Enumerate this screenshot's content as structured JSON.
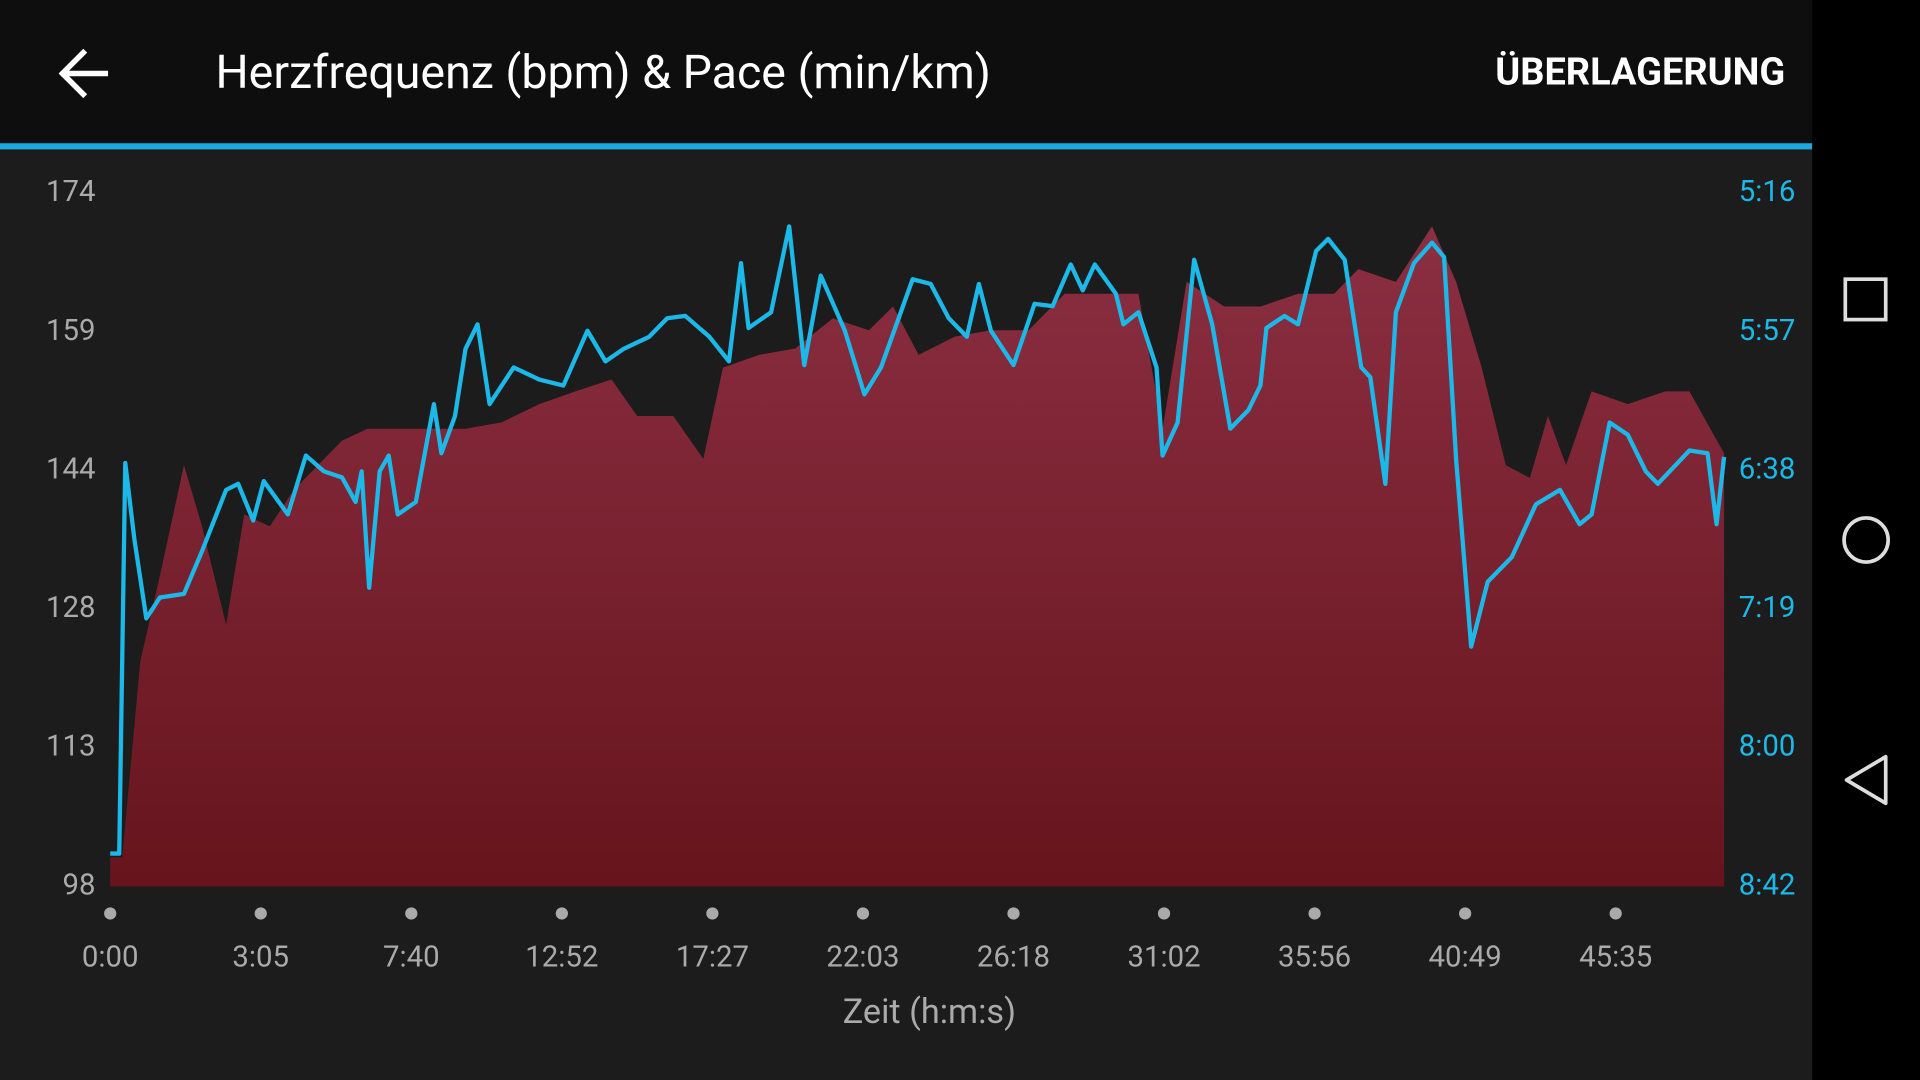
{
  "header": {
    "title": "Herzfrequenz (bpm) & Pace (min/km)",
    "action": "ÜBERLAGERUNG"
  },
  "chart_data": {
    "type": "line",
    "xlabel": "Zeit (h:m:s)",
    "xlim": [
      0,
      10.72
    ],
    "xticks": [
      {
        "value": 0,
        "label": "0:00"
      },
      {
        "value": 1,
        "label": "3:05"
      },
      {
        "value": 2,
        "label": "7:40"
      },
      {
        "value": 3,
        "label": "12:52"
      },
      {
        "value": 4,
        "label": "17:27"
      },
      {
        "value": 5,
        "label": "22:03"
      },
      {
        "value": 6,
        "label": "26:18"
      },
      {
        "value": 7,
        "label": "31:02"
      },
      {
        "value": 8,
        "label": "35:56"
      },
      {
        "value": 9,
        "label": "40:49"
      },
      {
        "value": 10,
        "label": "45:35"
      }
    ],
    "ylim": [
      98,
      174
    ],
    "yticks": [
      98,
      {
        "value": 113.2,
        "label": "113"
      },
      {
        "value": 128.4,
        "label": "128"
      },
      {
        "value": 143.6,
        "label": "144"
      },
      {
        "value": 158.8,
        "label": "159"
      },
      174
    ],
    "y2lim": [
      522,
      316
    ],
    "y2ticks": [
      {
        "value": 522,
        "label": "8:42"
      },
      {
        "value": 480.8,
        "label": "8:00"
      },
      {
        "value": 439.6,
        "label": "7:19"
      },
      {
        "value": 398.4,
        "label": "6:38"
      },
      {
        "value": 357.2,
        "label": "5:57"
      },
      {
        "value": 316,
        "label": "5:16"
      }
    ],
    "series": [
      {
        "type": "area",
        "color": "#8a2d3f",
        "x": [
          0,
          0.08,
          0.2,
          0.33,
          0.49,
          0.61,
          0.77,
          0.89,
          1.06,
          1.22,
          1.38,
          1.54,
          1.71,
          1.87,
          2.11,
          2.36,
          2.6,
          2.85,
          3.09,
          3.33,
          3.5,
          3.74,
          3.94,
          4.07,
          4.31,
          4.55,
          4.8,
          5.04,
          5.2,
          5.37,
          5.61,
          5.85,
          6.1,
          6.34,
          6.59,
          6.83,
          6.99,
          7.15,
          7.4,
          7.64,
          7.89,
          8.13,
          8.29,
          8.54,
          8.78,
          8.94,
          9.11,
          9.27,
          9.43,
          9.55,
          9.67,
          9.84,
          10.08,
          10.33,
          10.49,
          10.72
        ],
        "values": [
          101.2,
          101.2,
          122.7,
          132.1,
          144.2,
          137.5,
          126.7,
          138.8,
          137.5,
          141.5,
          144.2,
          146.9,
          148.2,
          148.2,
          148.2,
          148.2,
          148.9,
          150.9,
          152.3,
          153.6,
          149.6,
          149.6,
          144.9,
          154.9,
          156.3,
          157.0,
          160.3,
          159.0,
          161.6,
          156.3,
          158.3,
          159.0,
          159.0,
          163.0,
          163.0,
          163.0,
          148.2,
          164.3,
          161.6,
          161.6,
          163.0,
          163.0,
          165.7,
          164.3,
          170.4,
          164.3,
          154.9,
          144.2,
          142.8,
          149.6,
          144.2,
          152.3,
          150.9,
          152.3,
          152.3,
          145.5
        ]
      },
      {
        "type": "line",
        "axis": "y2",
        "color": "#1cb8e8",
        "x": [
          0,
          0.06,
          0.1,
          0.16,
          0.24,
          0.33,
          0.49,
          0.61,
          0.77,
          0.85,
          0.95,
          1.02,
          1.18,
          1.3,
          1.42,
          1.54,
          1.63,
          1.67,
          1.72,
          1.79,
          1.85,
          1.91,
          2.03,
          2.15,
          2.2,
          2.29,
          2.36,
          2.44,
          2.52,
          2.68,
          2.85,
          3.01,
          3.17,
          3.29,
          3.41,
          3.58,
          3.7,
          3.82,
          3.98,
          4.11,
          4.19,
          4.24,
          4.39,
          4.51,
          4.61,
          4.72,
          4.88,
          5.01,
          5.12,
          5.33,
          5.45,
          5.57,
          5.69,
          5.77,
          5.85,
          6.0,
          6.14,
          6.26,
          6.38,
          6.46,
          6.54,
          6.68,
          6.73,
          6.83,
          6.95,
          6.99,
          7.09,
          7.2,
          7.32,
          7.44,
          7.56,
          7.64,
          7.68,
          7.8,
          7.89,
          8.01,
          8.09,
          8.2,
          8.31,
          8.37,
          8.47,
          8.54,
          8.66,
          8.78,
          8.86,
          8.94,
          9.04,
          9.15,
          9.31,
          9.47,
          9.63,
          9.76,
          9.84,
          9.96,
          10.08,
          10.2,
          10.28,
          10.49,
          10.61,
          10.67,
          10.72
        ],
        "values": [
          512.2,
          512.2,
          396.1,
          418.6,
          442.3,
          436.1,
          435.0,
          422.3,
          404.1,
          402.3,
          413.2,
          401.5,
          411.4,
          393.9,
          398.6,
          400.4,
          407.7,
          398.6,
          433.2,
          398.6,
          393.9,
          411.4,
          407.7,
          378.6,
          393.2,
          382.2,
          362.2,
          354.9,
          378.6,
          367.7,
          371.3,
          373.1,
          356.8,
          365.9,
          362.2,
          358.6,
          353.1,
          352.4,
          358.6,
          365.9,
          336.7,
          356.0,
          351.3,
          325.8,
          367.0,
          340.4,
          356.8,
          375.7,
          367.7,
          341.5,
          342.9,
          353.1,
          358.6,
          342.9,
          356.8,
          367.0,
          348.8,
          349.5,
          337.1,
          344.8,
          337.1,
          345.8,
          354.9,
          351.3,
          367.7,
          393.9,
          384.1,
          335.7,
          354.9,
          385.9,
          380.4,
          373.1,
          356.0,
          352.4,
          354.9,
          333.1,
          329.5,
          335.7,
          367.7,
          370.6,
          402.3,
          351.3,
          336.7,
          330.6,
          334.9,
          395.0,
          450.7,
          431.4,
          424.1,
          408.4,
          404.1,
          414.3,
          411.4,
          384.1,
          387.7,
          398.6,
          402.3,
          392.4,
          393.2,
          414.3,
          394.3
        ]
      }
    ]
  }
}
